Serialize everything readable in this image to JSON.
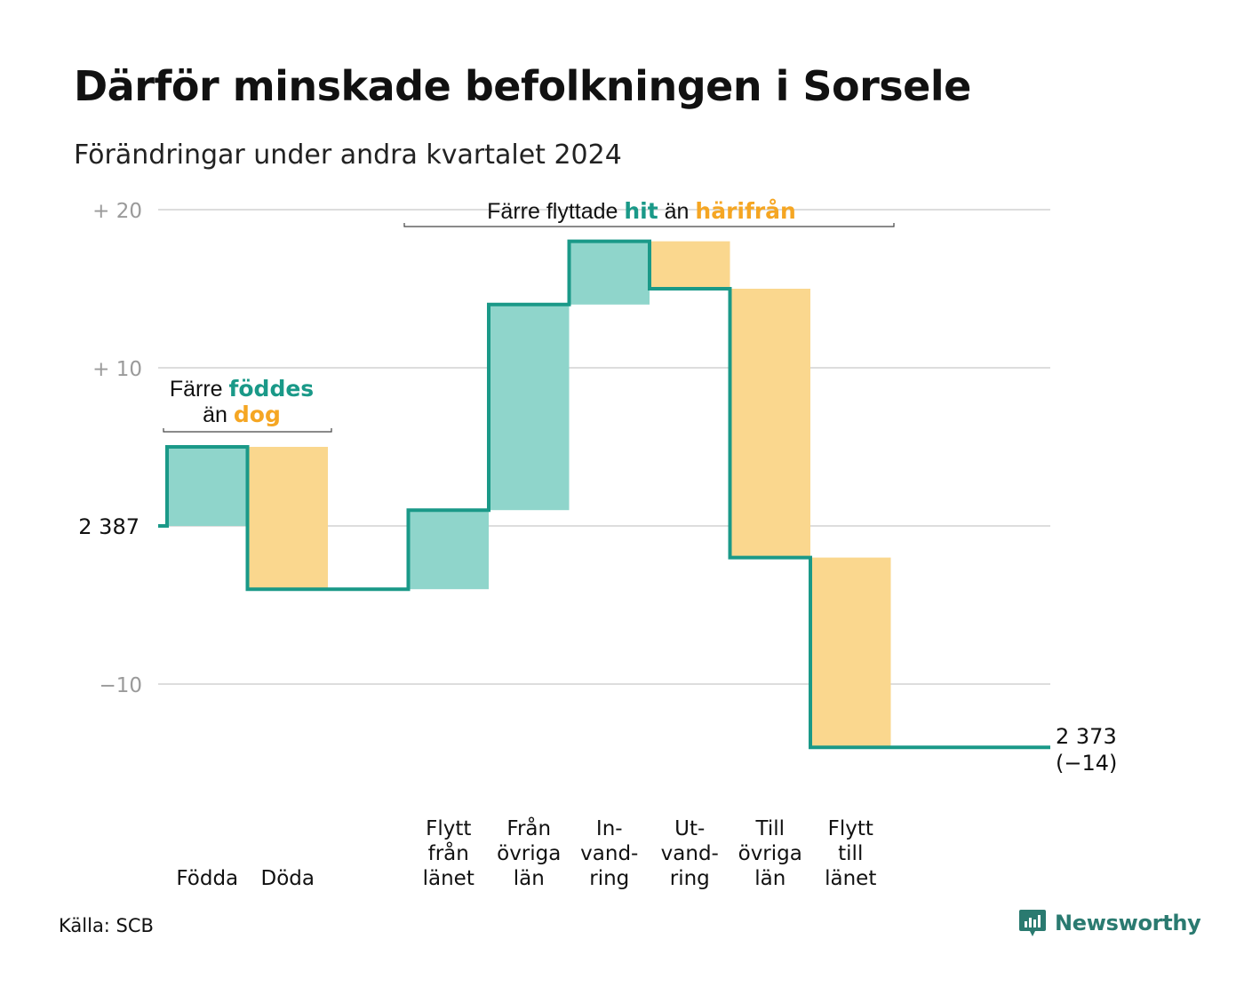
{
  "title": "Därför minskade befolkningen i Sorsele",
  "subtitle": "Förändringar under andra kvartalet 2024",
  "source": "Källa: SCB",
  "brand": {
    "name": "Newsworthy",
    "icon": "newsworthy-logo-icon"
  },
  "colors": {
    "increase": "#1a9988",
    "increase_fill": "#8fd5cb",
    "decrease": "#f5a623",
    "decrease_fill": "#fad78e",
    "grid": "#dddddd",
    "tick": "#9a9a9a"
  },
  "chart_data": {
    "type": "waterfall",
    "start_value": 2387,
    "end_value": 2373,
    "y_ticks": [
      {
        "value": 20,
        "label": "+ 20"
      },
      {
        "value": 10,
        "label": "+ 10"
      },
      {
        "value": 0,
        "label": "2 387"
      },
      {
        "value": -10,
        "label": "−10"
      }
    ],
    "ylim": [
      -14,
      20
    ],
    "steps": [
      {
        "key": "fodda",
        "label_lines": [
          "Födda"
        ],
        "change": 5,
        "kind": "increase"
      },
      {
        "key": "doda",
        "label_lines": [
          "Döda"
        ],
        "change": -9,
        "kind": "decrease"
      },
      {
        "key": "gap",
        "label_lines": [],
        "change": 0,
        "kind": "none"
      },
      {
        "key": "flytt-fran-lanet",
        "label_lines": [
          "Flytt",
          "från",
          "länet"
        ],
        "change": 5,
        "kind": "increase"
      },
      {
        "key": "fran-ovriga-lan",
        "label_lines": [
          "Från",
          "övriga",
          "län"
        ],
        "change": 13,
        "kind": "increase"
      },
      {
        "key": "invandring",
        "label_lines": [
          "In-",
          "vand-",
          "ring"
        ],
        "change": 4,
        "kind": "increase"
      },
      {
        "key": "utvandring",
        "label_lines": [
          "Ut-",
          "vand-",
          "ring"
        ],
        "change": -3,
        "kind": "decrease"
      },
      {
        "key": "till-ovriga-lan",
        "label_lines": [
          "Till",
          "övriga",
          "län"
        ],
        "change": -17,
        "kind": "decrease"
      },
      {
        "key": "flytt-till-lanet",
        "label_lines": [
          "Flytt",
          "till",
          "länet"
        ],
        "change": -12,
        "kind": "decrease"
      }
    ],
    "end_label": [
      "2 373",
      "(−14)"
    ],
    "annotations": [
      {
        "key": "fodda-doda",
        "lines": [
          [
            {
              "text": "Färre ",
              "kind": "plain"
            },
            {
              "text": "föddes",
              "kind": "increase"
            }
          ],
          [
            {
              "text": "än ",
              "kind": "plain"
            },
            {
              "text": "dog",
              "kind": "decrease"
            }
          ]
        ]
      },
      {
        "key": "flyttade",
        "lines": [
          [
            {
              "text": "Färre flyttade ",
              "kind": "plain"
            },
            {
              "text": "hit",
              "kind": "increase"
            },
            {
              "text": " än ",
              "kind": "plain"
            },
            {
              "text": "härifrån",
              "kind": "decrease"
            }
          ]
        ]
      }
    ]
  }
}
